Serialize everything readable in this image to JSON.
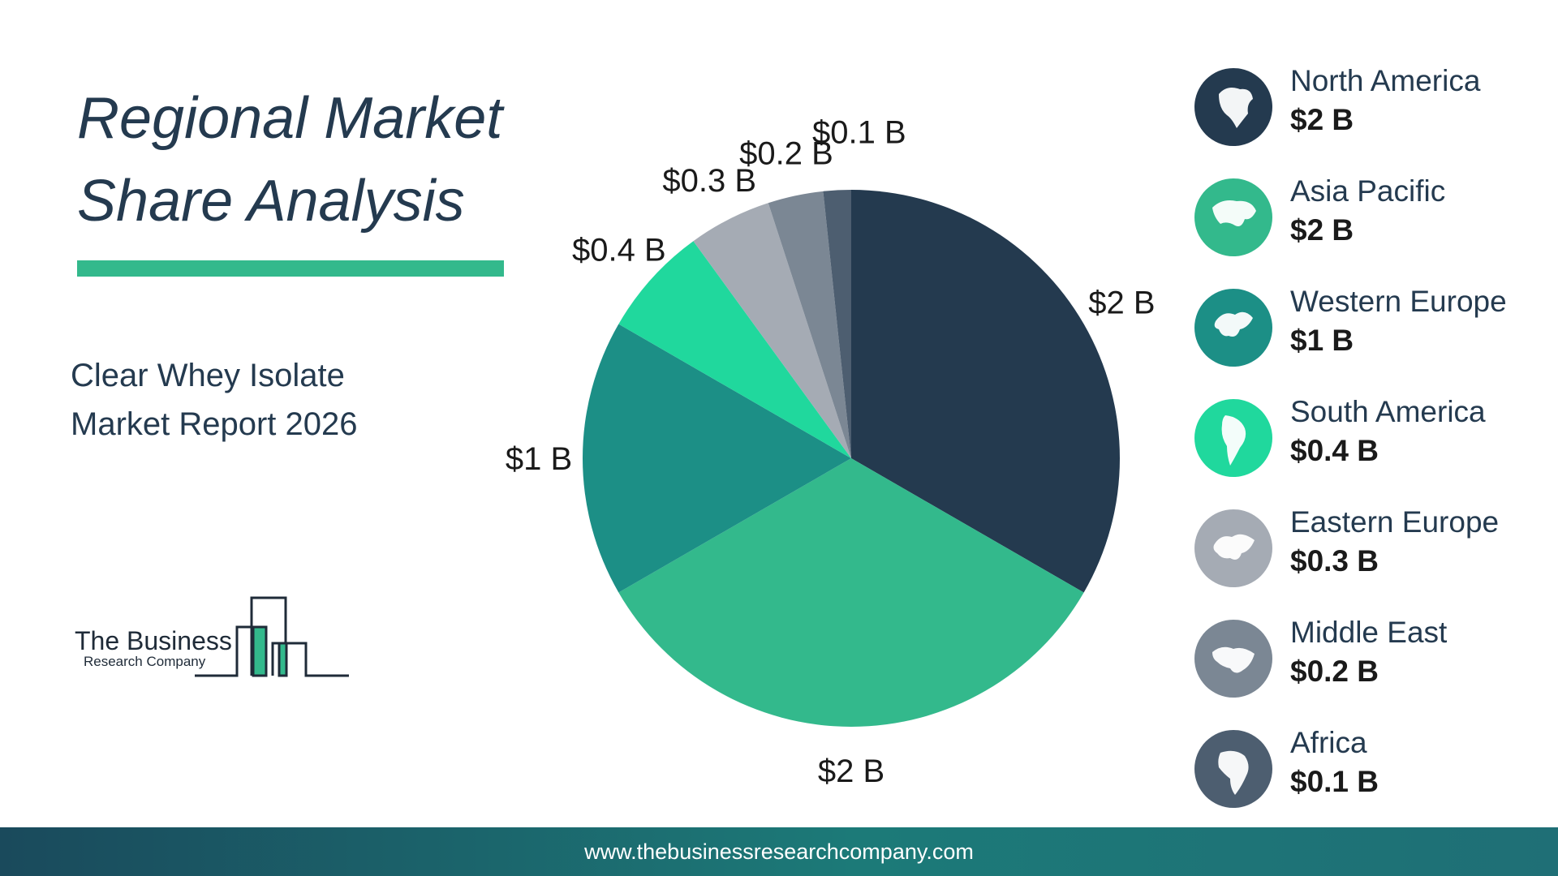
{
  "header": {
    "title_line1": "Regional Market",
    "title_line2": "Share Analysis",
    "subtitle_line1": "Clear Whey Isolate",
    "subtitle_line2": "Market Report 2026"
  },
  "logo": {
    "line1": "The Business",
    "line2": "Research Company"
  },
  "footer": {
    "url": "www.thebusinessresearchcompany.com"
  },
  "colors": {
    "accent": "#33b98c",
    "title": "#243a4f"
  },
  "chart_data": {
    "type": "pie",
    "slices": [
      {
        "label": "$2 B",
        "region": "North America",
        "value": 2.0,
        "color": "#243a4f",
        "icon": "north-america-map-icon"
      },
      {
        "label": "$2 B",
        "region": "Asia Pacific",
        "value": 2.0,
        "color": "#33b98c",
        "icon": "asia-pacific-map-icon"
      },
      {
        "label": "$1 B",
        "region": "Western Europe",
        "value": 1.0,
        "color": "#1c8f86",
        "icon": "western-europe-map-icon"
      },
      {
        "label": "$0.4 B",
        "region": "South America",
        "value": 0.4,
        "color": "#20d89d",
        "icon": "south-america-map-icon"
      },
      {
        "label": "$0.3 B",
        "region": "Eastern Europe",
        "value": 0.3,
        "color": "#a5abb4",
        "icon": "eastern-europe-map-icon"
      },
      {
        "label": "$0.2 B",
        "region": "Middle East",
        "value": 0.2,
        "color": "#7b8794",
        "icon": "middle-east-map-icon"
      },
      {
        "label": "$0.1 B",
        "region": "Africa",
        "value": 0.1,
        "color": "#4d5e70",
        "icon": "africa-map-icon"
      }
    ],
    "legend_position": "right"
  }
}
